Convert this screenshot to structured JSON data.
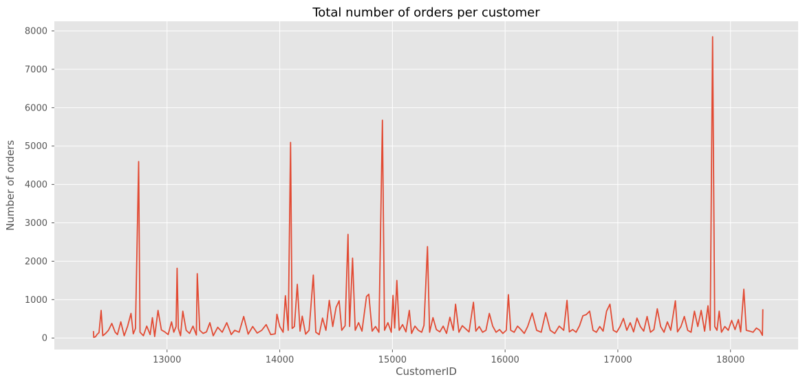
{
  "chart_data": {
    "type": "line",
    "title": "Total number of orders per customer",
    "xlabel": "CustomerID",
    "ylabel": "Number of orders",
    "xlim": [
      12000,
      18600
    ],
    "ylim": [
      -300,
      8250
    ],
    "x_ticks": [
      13000,
      14000,
      15000,
      16000,
      17000,
      18000
    ],
    "y_ticks": [
      0,
      1000,
      2000,
      3000,
      4000,
      5000,
      6000,
      7000,
      8000
    ],
    "grid": true,
    "legend": "none",
    "series": [
      {
        "color": "#e24a33",
        "x": [
          12347,
          12350,
          12365,
          12380,
          12396,
          12415,
          12430,
          12455,
          12480,
          12510,
          12540,
          12560,
          12590,
          12620,
          12650,
          12680,
          12700,
          12720,
          12748,
          12760,
          12790,
          12820,
          12850,
          12870,
          12890,
          12920,
          12950,
          12980,
          13010,
          13040,
          13060,
          13080,
          13089,
          13100,
          13120,
          13140,
          13170,
          13200,
          13230,
          13260,
          13268,
          13290,
          13320,
          13350,
          13380,
          13410,
          13450,
          13490,
          13530,
          13570,
          13600,
          13640,
          13680,
          13720,
          13760,
          13800,
          13840,
          13880,
          13920,
          13960,
          13975,
          14000,
          14030,
          14050,
          14075,
          14096,
          14110,
          14130,
          14156,
          14180,
          14200,
          14230,
          14260,
          14298,
          14320,
          14350,
          14380,
          14410,
          14440,
          14470,
          14500,
          14527,
          14550,
          14580,
          14606,
          14620,
          14646,
          14670,
          14700,
          14730,
          14770,
          14790,
          14820,
          14850,
          14880,
          14911,
          14930,
          14960,
          14990,
          15005,
          15020,
          15039,
          15060,
          15090,
          15120,
          15150,
          15170,
          15200,
          15230,
          15260,
          15280,
          15311,
          15330,
          15360,
          15390,
          15420,
          15450,
          15480,
          15510,
          15540,
          15560,
          15590,
          15620,
          15650,
          15680,
          15719,
          15740,
          15770,
          15800,
          15830,
          15860,
          15890,
          15920,
          15950,
          15980,
          16010,
          16029,
          16050,
          16080,
          16110,
          16140,
          16170,
          16200,
          16240,
          16280,
          16320,
          16360,
          16400,
          16440,
          16480,
          16520,
          16549,
          16570,
          16600,
          16630,
          16660,
          16690,
          16720,
          16750,
          16780,
          16810,
          16840,
          16870,
          16900,
          16930,
          16960,
          16990,
          17020,
          17050,
          17080,
          17110,
          17140,
          17170,
          17200,
          17230,
          17260,
          17290,
          17320,
          17350,
          17380,
          17410,
          17440,
          17470,
          17511,
          17530,
          17560,
          17590,
          17620,
          17650,
          17680,
          17710,
          17740,
          17770,
          17800,
          17820,
          17841,
          17860,
          17880,
          17900,
          17920,
          17950,
          17980,
          18010,
          18040,
          18070,
          18090,
          18118,
          18140,
          18170,
          18200,
          18230,
          18260,
          18283,
          18287
        ],
        "values": [
          182,
          17,
          33,
          95,
          140,
          720,
          60,
          120,
          200,
          380,
          150,
          90,
          420,
          60,
          310,
          640,
          110,
          250,
          4596,
          150,
          60,
          310,
          90,
          530,
          40,
          720,
          210,
          160,
          90,
          420,
          150,
          300,
          1818,
          250,
          60,
          700,
          200,
          120,
          310,
          80,
          1677,
          200,
          120,
          160,
          400,
          60,
          280,
          150,
          400,
          90,
          200,
          150,
          560,
          100,
          300,
          130,
          200,
          350,
          90,
          110,
          620,
          300,
          150,
          1100,
          200,
          5095,
          250,
          300,
          1400,
          180,
          570,
          100,
          200,
          1640,
          150,
          90,
          520,
          200,
          980,
          300,
          800,
          970,
          200,
          320,
          2700,
          300,
          2080,
          200,
          400,
          180,
          1080,
          1140,
          180,
          300,
          150,
          5675,
          200,
          400,
          150,
          1110,
          260,
          1500,
          200,
          350,
          160,
          720,
          120,
          310,
          200,
          150,
          330,
          2379,
          150,
          530,
          220,
          160,
          310,
          120,
          540,
          200,
          880,
          150,
          320,
          240,
          160,
          930,
          180,
          300,
          150,
          200,
          640,
          310,
          150,
          220,
          120,
          200,
          1130,
          200,
          150,
          310,
          220,
          120,
          300,
          650,
          200,
          150,
          660,
          200,
          120,
          310,
          200,
          980,
          160,
          220,
          150,
          320,
          580,
          610,
          700,
          200,
          150,
          300,
          180,
          700,
          880,
          200,
          150,
          300,
          510,
          200,
          400,
          160,
          520,
          300,
          180,
          560,
          150,
          220,
          760,
          300,
          150,
          420,
          200,
          970,
          160,
          300,
          560,
          200,
          150,
          700,
          300,
          720,
          180,
          840,
          200,
          7847,
          300,
          200,
          700,
          150,
          300,
          200,
          460,
          220,
          480,
          160,
          1270,
          200,
          180,
          150,
          260,
          200,
          70,
          750
        ]
      }
    ]
  }
}
